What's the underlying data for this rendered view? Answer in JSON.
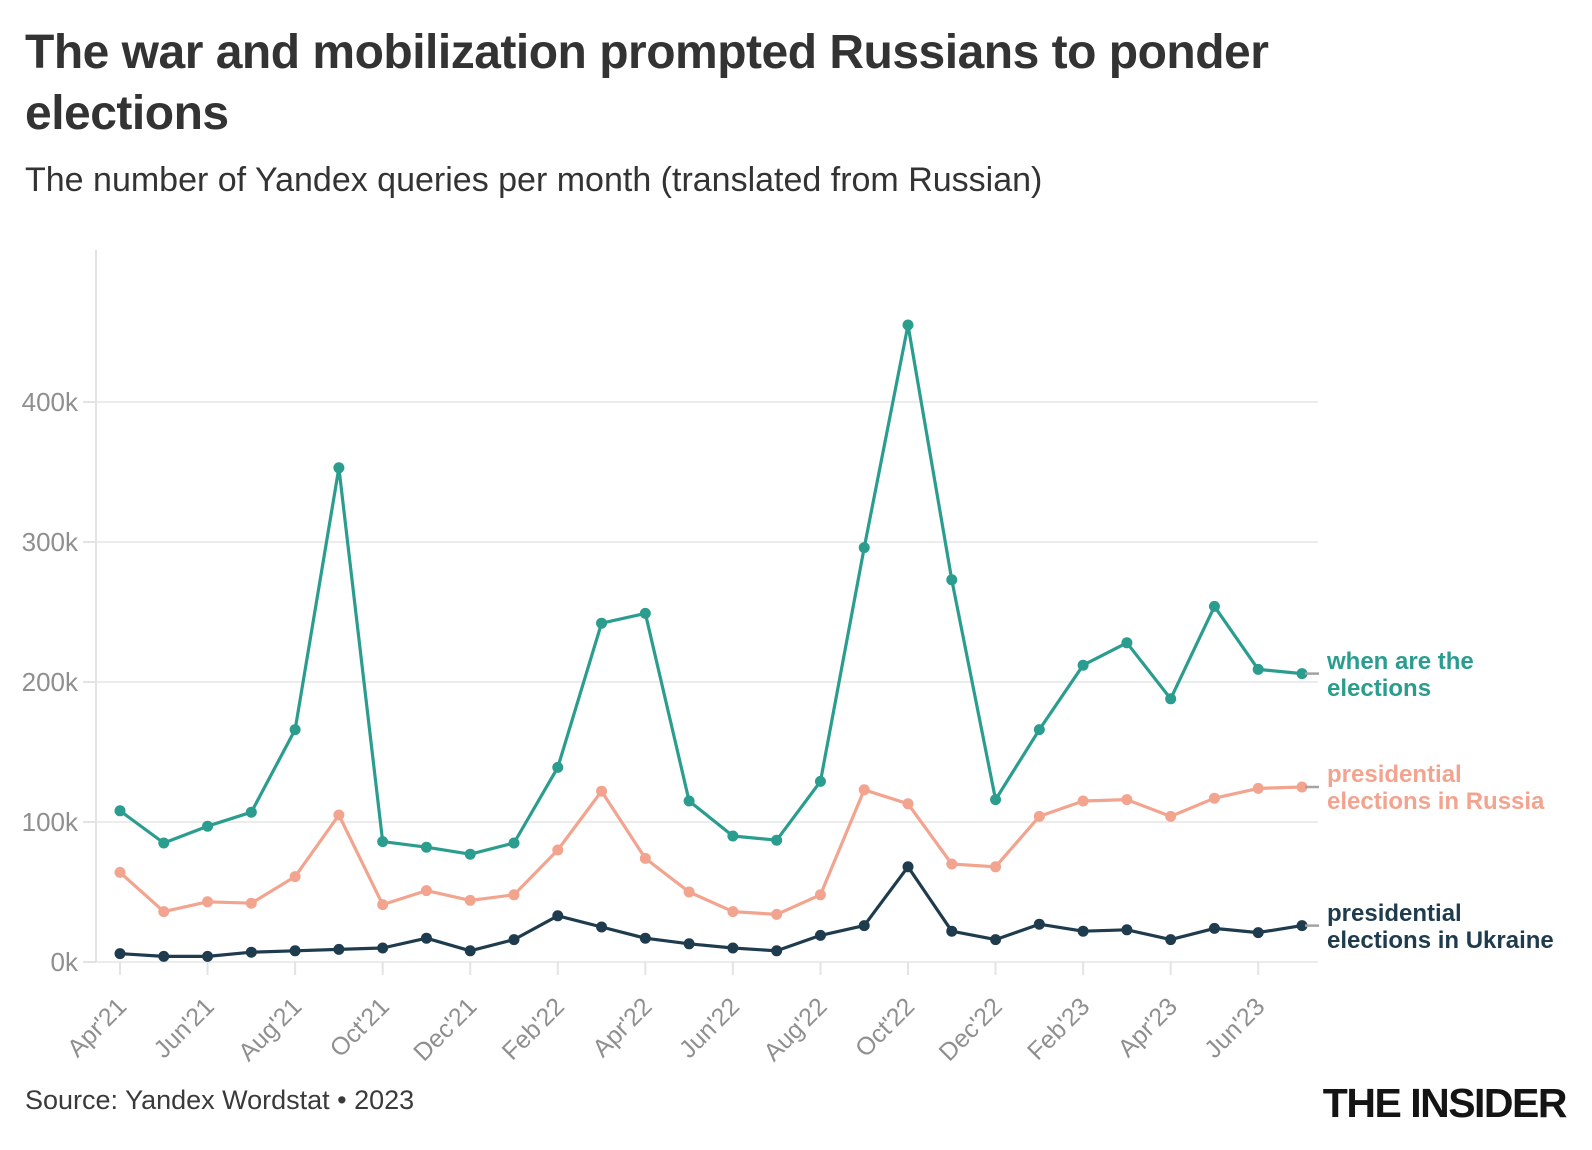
{
  "header": {
    "title_line1": "The war and mobilization prompted Russians to ponder",
    "title_line2": "elections",
    "subtitle": "The number of Yandex queries per month (translated from Russian)"
  },
  "footer": {
    "source": "Source: Yandex Wordstat • 2023",
    "logo": "THE INSIDER"
  },
  "colors": {
    "teal": "#2a9d8f",
    "salmon": "#f2a48f",
    "navy": "#1e3c4e",
    "title_text": "#333333",
    "axis_text": "#8f8f8f",
    "gridline": "#ececec",
    "axis_line": "#e3e3e3",
    "end_dash": "#a3a3a3"
  },
  "chart_data": {
    "type": "line",
    "title": "The war and mobilization prompted Russians to ponder elections",
    "subtitle": "The number of Yandex queries per month (translated from Russian)",
    "x": [
      "Apr'21",
      "May'21",
      "Jun'21",
      "Jul'21",
      "Aug'21",
      "Sep'21",
      "Oct'21",
      "Nov'21",
      "Dec'21",
      "Jan'22",
      "Feb'22",
      "Mar'22",
      "Apr'22",
      "May'22",
      "Jun'22",
      "Jul'22",
      "Aug'22",
      "Sep'22",
      "Oct'22",
      "Nov'22",
      "Dec'22",
      "Jan'23",
      "Feb'23",
      "Mar'23",
      "Apr'23",
      "May'23",
      "Jun'23",
      "Jul'23"
    ],
    "x_tick_labels": [
      "Apr'21",
      "Jun'21",
      "Aug'21",
      "Oct'21",
      "Dec'21",
      "Feb'22",
      "Apr'22",
      "Jun'22",
      "Aug'22",
      "Oct'22",
      "Dec'22",
      "Feb'23",
      "Apr'23",
      "Jun'23"
    ],
    "yticks": [
      {
        "value": 0,
        "label": "0k"
      },
      {
        "value": 100,
        "label": "100k"
      },
      {
        "value": 200,
        "label": "200k"
      },
      {
        "value": 300,
        "label": "300k"
      },
      {
        "value": 400,
        "label": "400k"
      }
    ],
    "ylim": [
      0,
      460
    ],
    "units": "thousands of queries",
    "grid": "horizontal",
    "legend_position": "right of line ends",
    "series": [
      {
        "name": "when are the elections",
        "legend_lines": [
          "when are the",
          "elections"
        ],
        "color": "#2a9d8f",
        "values": [
          108,
          85,
          97,
          107,
          166,
          353,
          86,
          82,
          77,
          85,
          139,
          242,
          249,
          115,
          90,
          87,
          129,
          296,
          455,
          273,
          116,
          166,
          212,
          228,
          188,
          254,
          209,
          206
        ]
      },
      {
        "name": "presidential elections in Russia",
        "legend_lines": [
          "presidential",
          "elections in Russia"
        ],
        "color": "#f2a48f",
        "values": [
          64,
          36,
          43,
          42,
          61,
          105,
          41,
          51,
          44,
          48,
          80,
          122,
          74,
          50,
          36,
          34,
          48,
          123,
          113,
          70,
          68,
          104,
          115,
          116,
          104,
          117,
          124,
          125
        ]
      },
      {
        "name": "presidential elections in Ukraine",
        "legend_lines": [
          "presidential",
          "elections in Ukraine"
        ],
        "color": "#1e3c4e",
        "values": [
          6,
          4,
          4,
          7,
          8,
          9,
          10,
          17,
          8,
          16,
          33,
          25,
          17,
          13,
          10,
          8,
          19,
          26,
          68,
          22,
          16,
          27,
          22,
          23,
          16,
          24,
          21,
          26
        ]
      }
    ]
  }
}
